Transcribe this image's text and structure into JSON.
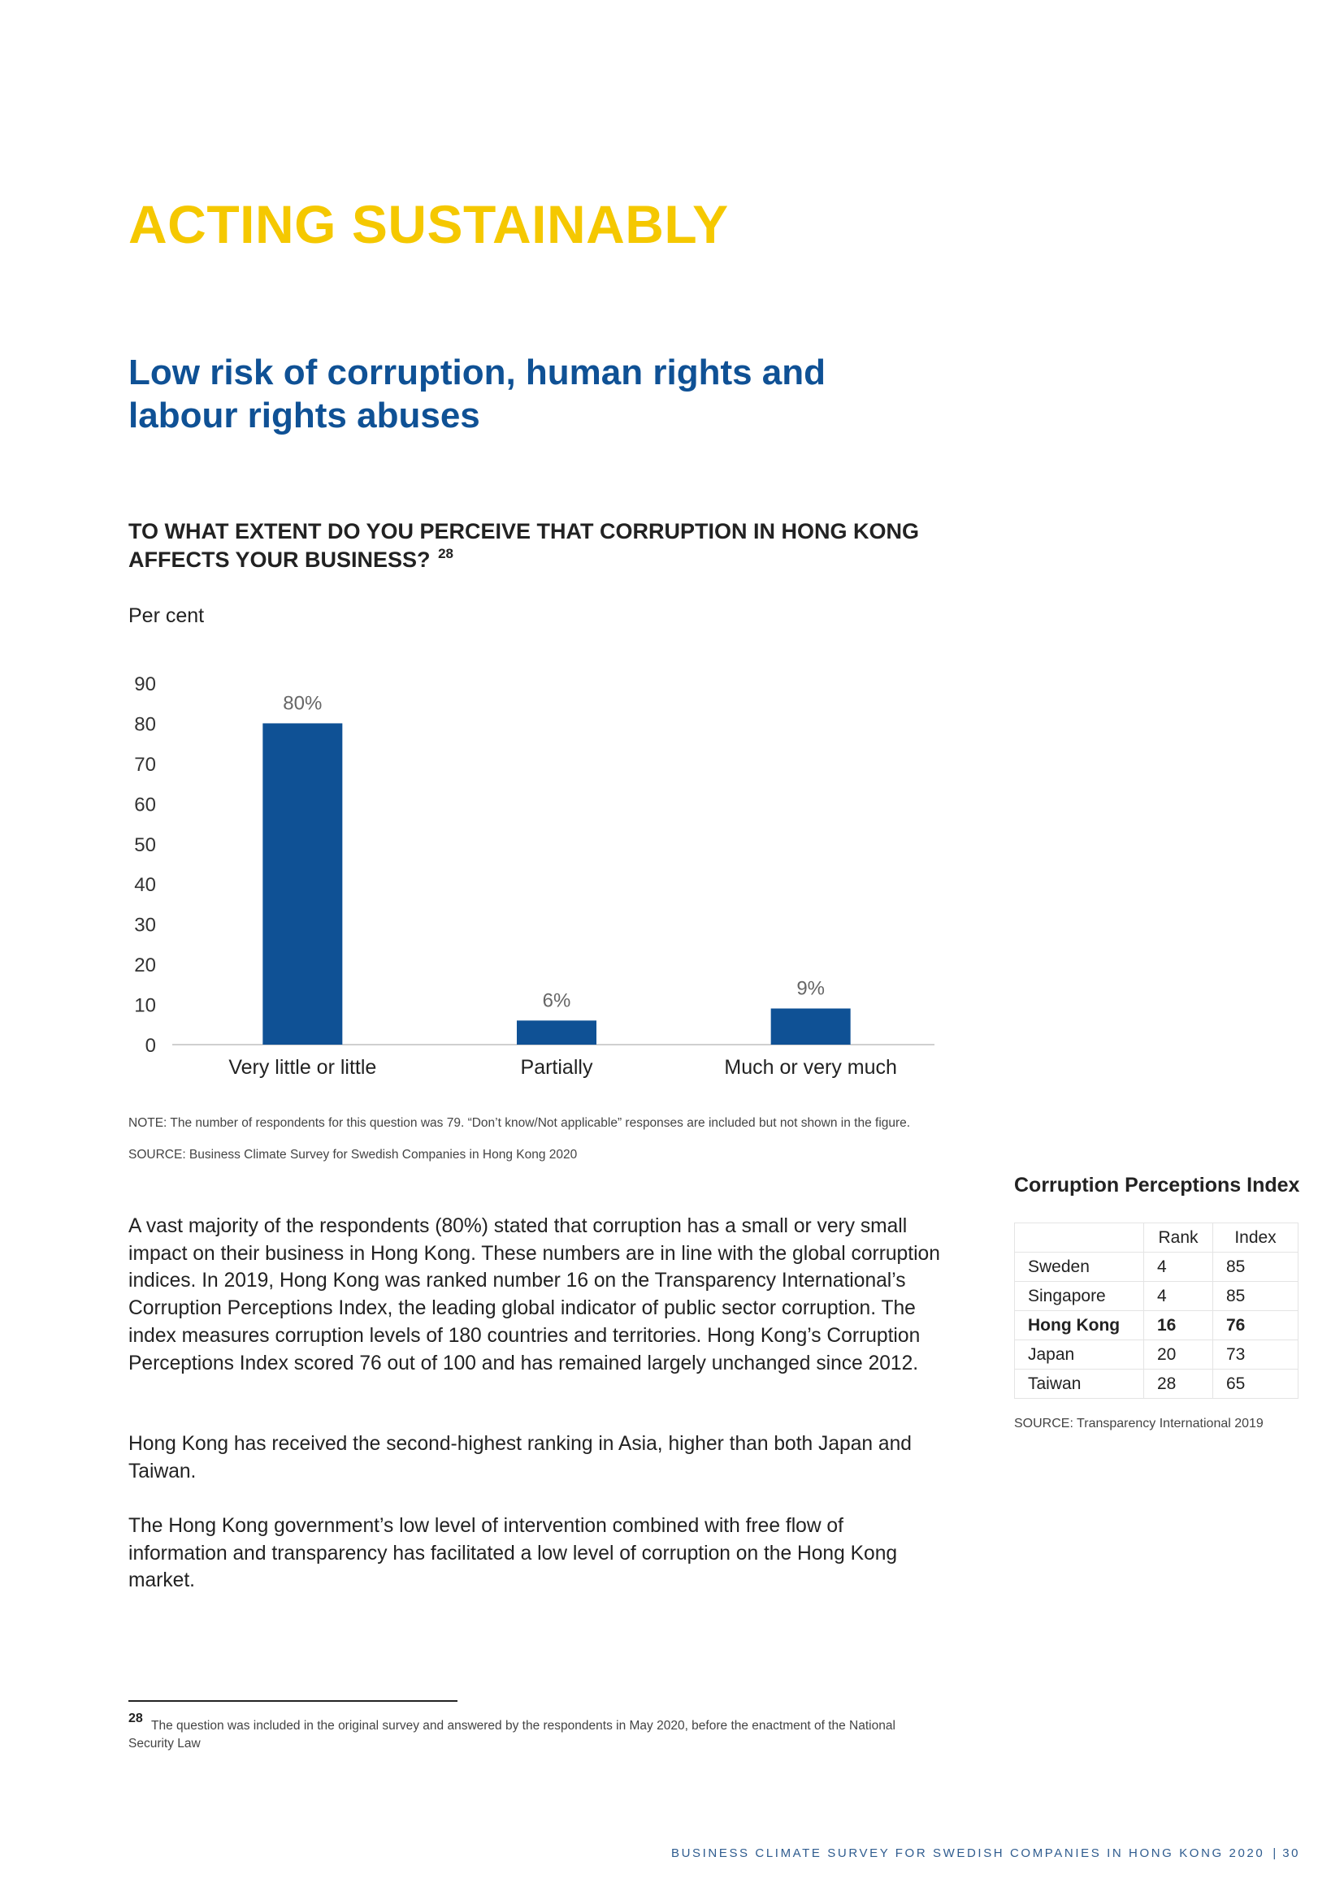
{
  "page": {
    "title": "ACTING SUSTAINABLY",
    "section_heading": "Low risk of corruption, human rights and labour rights abuses"
  },
  "chart_block": {
    "question": "TO WHAT EXTENT DO YOU PERCEIVE THAT CORRUPTION IN HONG KONG AFFECTS YOUR BUSINESS?",
    "question_ref": "28",
    "unit_label": "Per cent",
    "note": "NOTE: The number of respondents for this question was 79. “Don’t know/Not applicable” responses are included but not shown in the figure.",
    "source": "SOURCE: Business Climate Survey for Swedish Companies in Hong Kong 2020"
  },
  "chart_data": {
    "type": "bar",
    "categories": [
      "Very little or little",
      "Partially",
      "Much or very much"
    ],
    "values": [
      80,
      6,
      9
    ],
    "data_labels": [
      "80%",
      "6%",
      "9%"
    ],
    "yticks": [
      "0",
      "10",
      "20",
      "30",
      "40",
      "50",
      "60",
      "70",
      "80",
      "90"
    ],
    "ylim": [
      0,
      90
    ],
    "bar_color": "#0F5195",
    "grid": false
  },
  "body": {
    "paragraphs": [
      "A vast majority of the respondents (80%) stated that corruption has a small or very small impact on their business in Hong Kong. These numbers are in line with the global corruption indices. In 2019, Hong Kong was ranked number 16 on the Transparency International’s Corruption Perceptions Index, the leading global indicator of public sector corruption. The index measures corruption levels of 180 countries and territories. Hong Kong’s Corruption Perceptions Index scored 76 out of 100 and has remained largely unchanged since 2012.",
      "Hong Kong has received the second-highest ranking in Asia, higher than both Japan and Taiwan.",
      "The Hong Kong government’s low level of intervention combined with free flow of information and transparency has facilitated a low level of corruption on the Hong Kong market."
    ]
  },
  "cpi_table": {
    "title": "Corruption Perceptions Index",
    "headers": [
      "",
      "Rank",
      "Index"
    ],
    "rows": [
      {
        "country": "Sweden",
        "rank": "4",
        "index": "85"
      },
      {
        "country": "Singapore",
        "rank": "4",
        "index": "85"
      },
      {
        "country": "Hong Kong",
        "rank": "16",
        "index": "76"
      },
      {
        "country": "Japan",
        "rank": "20",
        "index": "73"
      },
      {
        "country": "Taiwan",
        "rank": "28",
        "index": "65"
      }
    ],
    "source": "SOURCE: Transparency International 2019"
  },
  "footnote": {
    "number": "28",
    "text": "The question was included in the original survey and answered by the respondents in May 2020, before the enactment of the National Security Law"
  },
  "footer": {
    "text": "BUSINESS CLIMATE SURVEY FOR SWEDISH COMPANIES IN HONG KONG 2020",
    "separator": "|",
    "page_number": "30"
  },
  "colors": {
    "title": "#F5C800",
    "heading": "#0F5195",
    "footer": "#2F5C8F"
  }
}
